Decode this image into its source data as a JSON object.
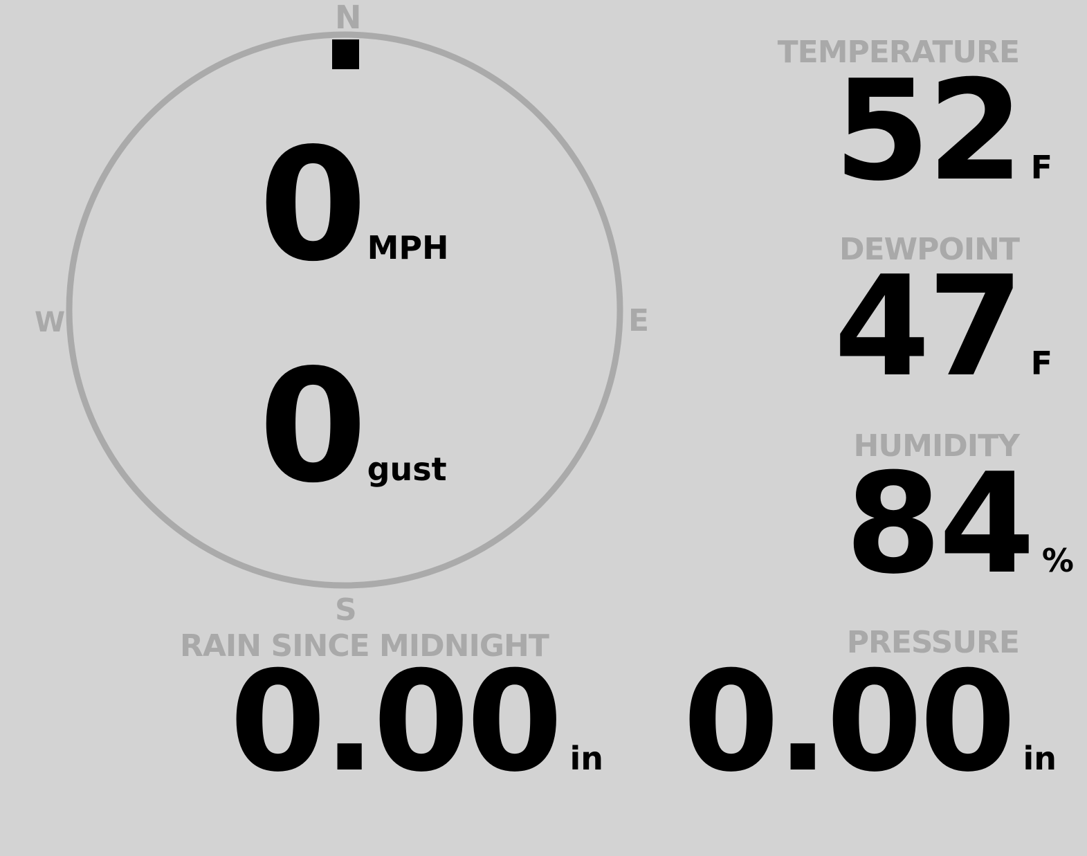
{
  "wind": {
    "compass": {
      "north": "N",
      "east": "E",
      "south": "S",
      "west": "W"
    },
    "direction_degrees": 0,
    "speed": "0",
    "speed_unit": "MPH",
    "gust": "0",
    "gust_label": "gust"
  },
  "temperature": {
    "label": "TEMPERATURE",
    "value": "52",
    "unit": "F"
  },
  "dewpoint": {
    "label": "DEWPOINT",
    "value": "47",
    "unit": "F"
  },
  "humidity": {
    "label": "HUMIDITY",
    "value": "84",
    "unit": "%"
  },
  "rain": {
    "label": "RAIN SINCE MIDNIGHT",
    "value": "0.00",
    "unit": "in"
  },
  "pressure": {
    "label": "PRESSURE",
    "value": "0.00",
    "unit": "in"
  },
  "colors": {
    "background": "#d3d3d3",
    "label": "#a9a9a9",
    "value": "#000000"
  }
}
